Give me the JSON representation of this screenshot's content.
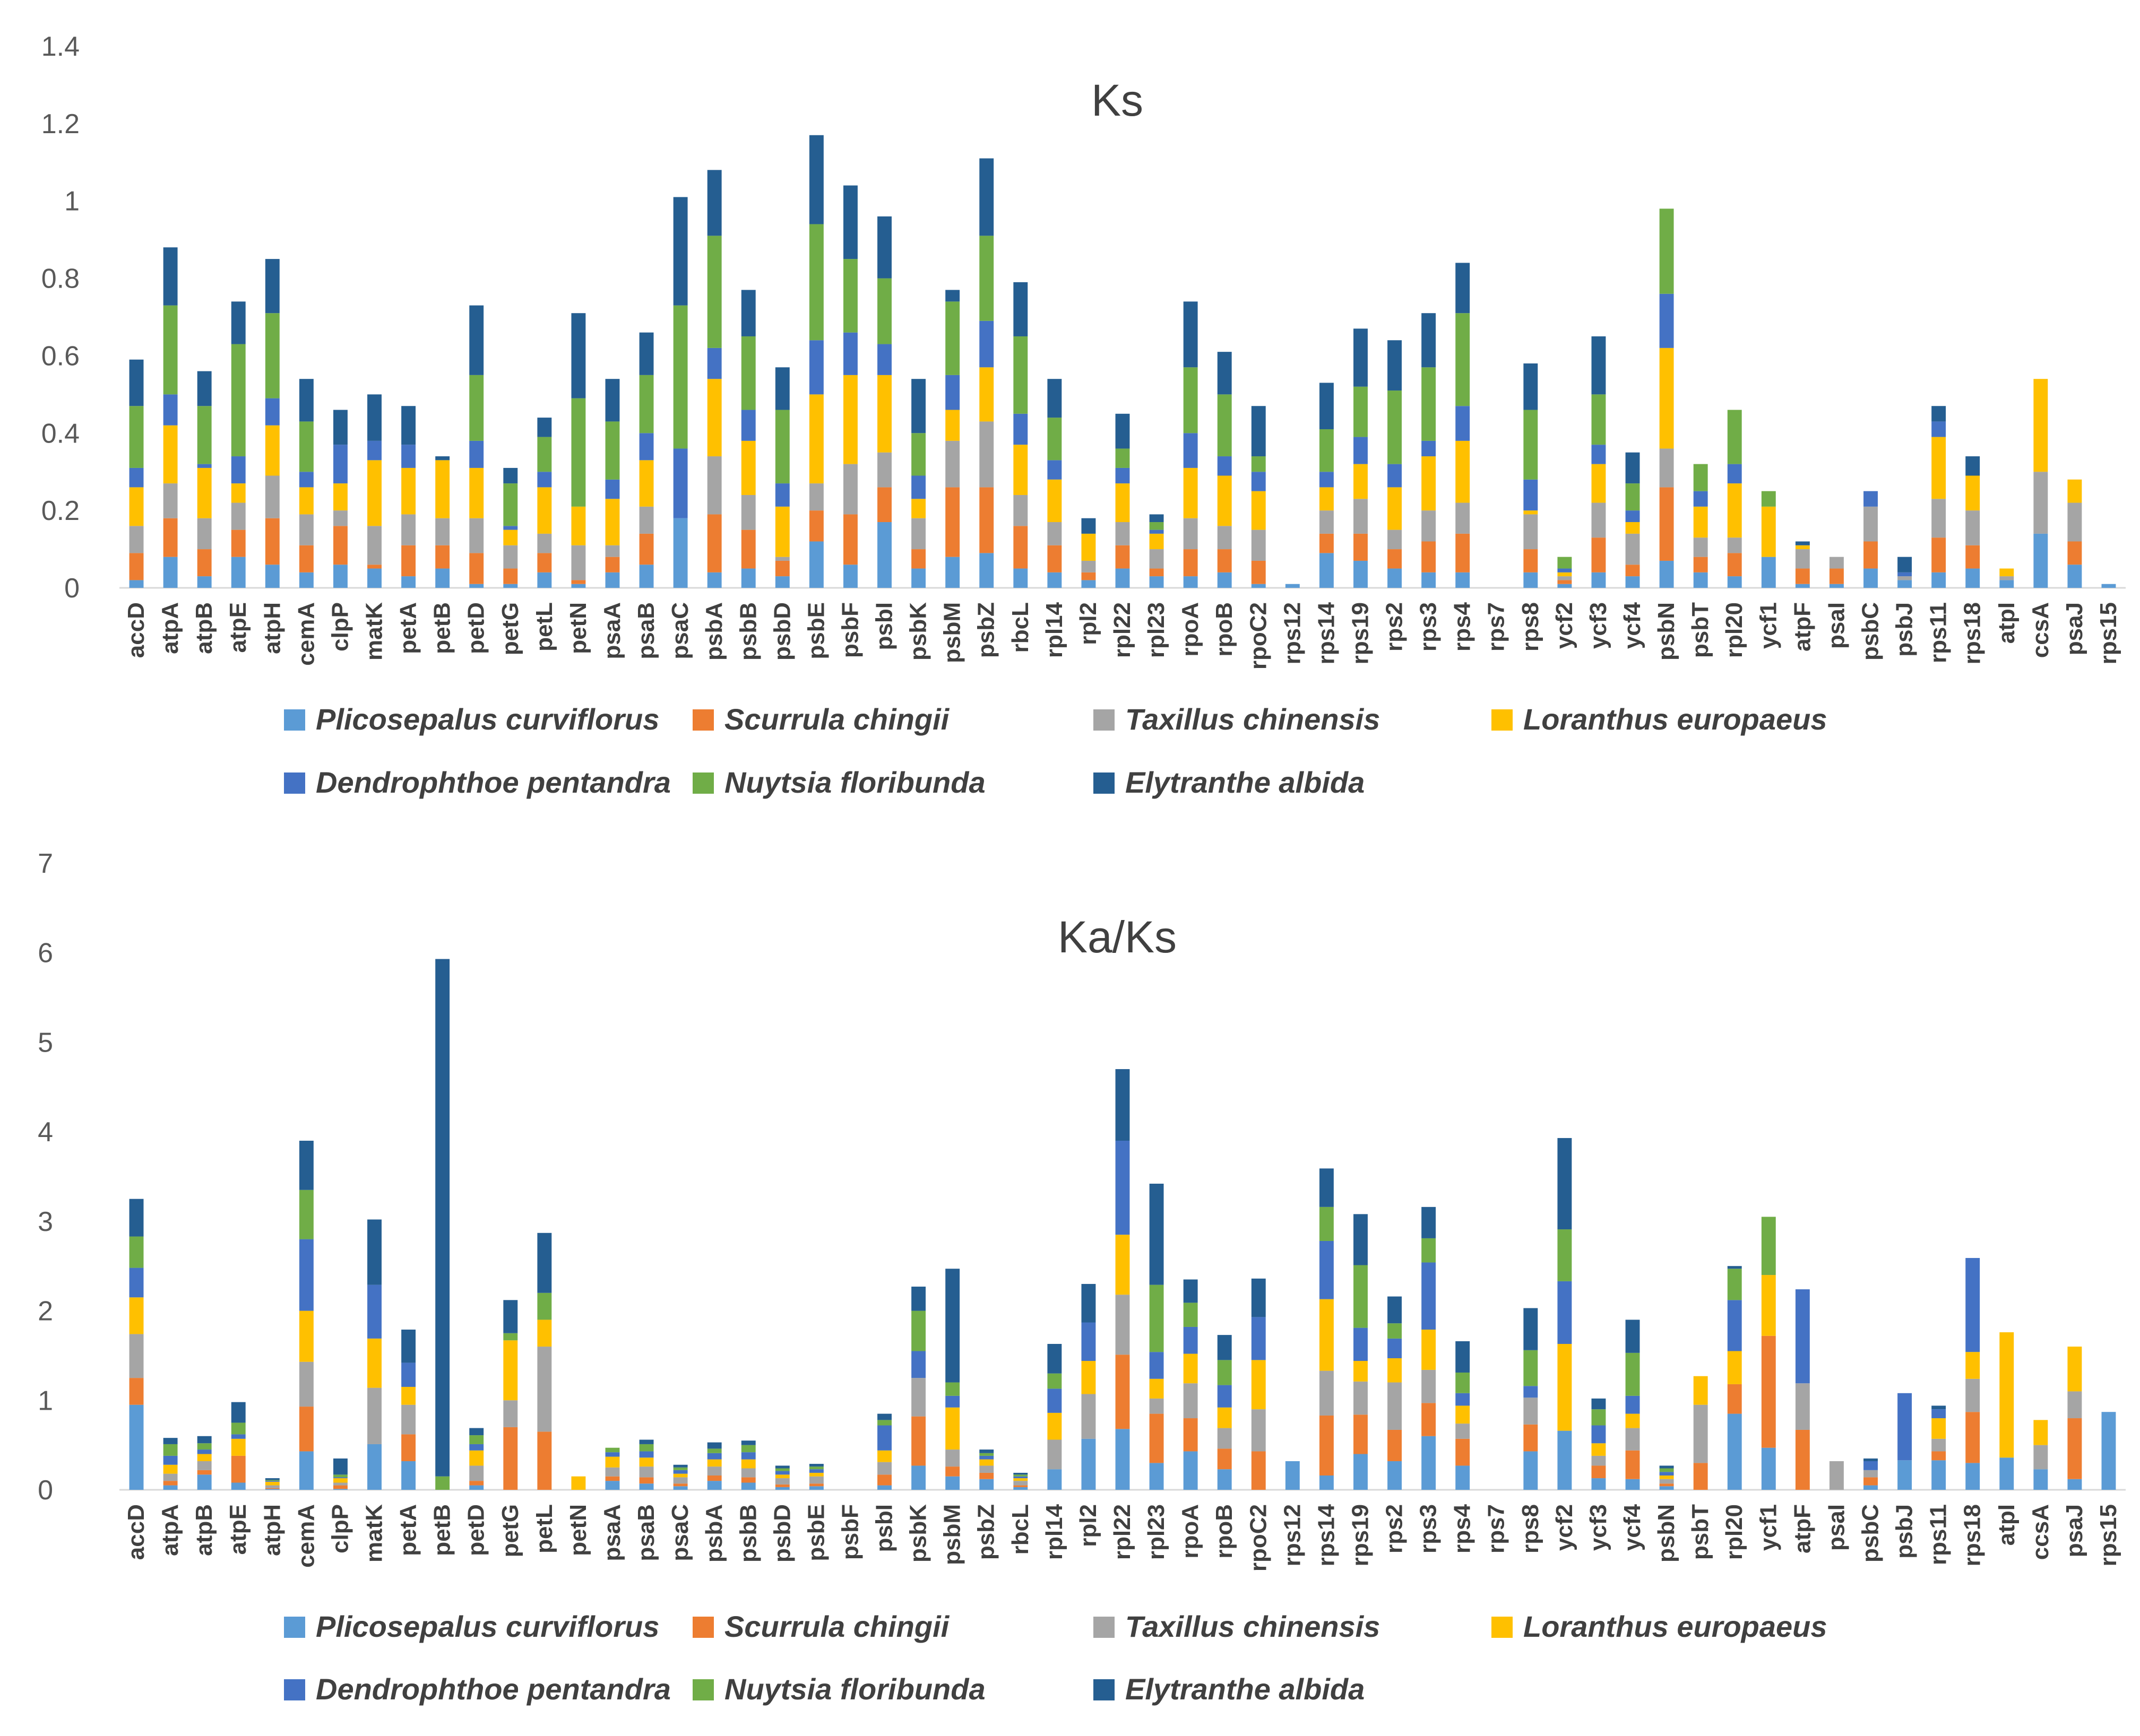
{
  "chart_data": [
    {
      "type": "bar",
      "stacked": true,
      "title": "Ks",
      "xlabel": "",
      "ylabel": "",
      "ylim": [
        0,
        1.4
      ],
      "yticks": [
        "0",
        "0.2",
        "0.4",
        "0.6",
        "0.8",
        "1",
        "1.2",
        "1.4"
      ],
      "grid": false,
      "legend": "bottom",
      "categories": [
        "accD",
        "atpA",
        "atpB",
        "atpE",
        "atpH",
        "cemA",
        "clpP",
        "matK",
        "petA",
        "petB",
        "petD",
        "petG",
        "petL",
        "petN",
        "psaA",
        "psaB",
        "psaC",
        "psbA",
        "psbB",
        "psbD",
        "psbE",
        "psbF",
        "psbI",
        "psbK",
        "psbM",
        "psbZ",
        "rbcL",
        "rpl14",
        "rpl2",
        "rpl22",
        "rpl23",
        "rpoA",
        "rpoB",
        "rpoC2",
        "rps12",
        "rps14",
        "rps19",
        "rps2",
        "rps3",
        "rps4",
        "rps7",
        "rps8",
        "ycf2",
        "ycf3",
        "ycf4",
        "psbN",
        "psbT",
        "rpl20",
        "ycf1",
        "atpF",
        "psaI",
        "psbC",
        "psbJ",
        "rps11",
        "rps18",
        "atpI",
        "ccsA",
        "psaJ",
        "rps15"
      ],
      "series": [
        {
          "name": "Plicosepalus curviflorus",
          "color": "#5B9BD5",
          "values": [
            0.02,
            0.08,
            0.03,
            0.08,
            0.06,
            0.04,
            0.06,
            0.05,
            0.03,
            0.05,
            0.01,
            0.01,
            0.04,
            0.01,
            0.04,
            0.06,
            0.18,
            0.04,
            0.05,
            0.03,
            0.12,
            0.06,
            0.17,
            0.05,
            0.08,
            0.09,
            0.05,
            0.04,
            0.02,
            0.05,
            0.03,
            0.03,
            0.04,
            0.01,
            0.01,
            0.09,
            0.07,
            0.05,
            0.04,
            0.04,
            0,
            0.04,
            0.01,
            0.04,
            0.03,
            0.07,
            0.04,
            0.03,
            0.08,
            0.01,
            0.01,
            0.05,
            0.02,
            0.04,
            0.05,
            0.02,
            0.14,
            0.06,
            0.01
          ]
        },
        {
          "name": "Scurrula chingii",
          "color": "#ED7D31",
          "values": [
            0.07,
            0.1,
            0.07,
            0.07,
            0.12,
            0.07,
            0.1,
            0.01,
            0.08,
            0.06,
            0.08,
            0.04,
            0.05,
            0.01,
            0.04,
            0.08,
            0,
            0.15,
            0.1,
            0.04,
            0.08,
            0.13,
            0.09,
            0.05,
            0.18,
            0.17,
            0.11,
            0.07,
            0.02,
            0.06,
            0.02,
            0.07,
            0.06,
            0.06,
            0,
            0.05,
            0.07,
            0.05,
            0.08,
            0.1,
            0,
            0.06,
            0.01,
            0.09,
            0.03,
            0.19,
            0.04,
            0.06,
            0,
            0.04,
            0.04,
            0.07,
            0,
            0.09,
            0.06,
            0,
            0,
            0.06,
            0
          ]
        },
        {
          "name": "Taxillus chinensis",
          "color": "#A5A5A5",
          "values": [
            0.07,
            0.09,
            0.08,
            0.07,
            0.11,
            0.08,
            0.04,
            0.1,
            0.08,
            0.07,
            0.09,
            0.06,
            0.05,
            0.09,
            0.03,
            0.07,
            0,
            0.15,
            0.09,
            0.01,
            0.07,
            0.13,
            0.09,
            0.08,
            0.12,
            0.17,
            0.08,
            0.06,
            0.03,
            0.06,
            0.05,
            0.08,
            0.06,
            0.08,
            0,
            0.06,
            0.09,
            0.05,
            0.08,
            0.08,
            0,
            0.09,
            0.01,
            0.09,
            0.08,
            0.1,
            0.05,
            0.04,
            0,
            0.05,
            0.03,
            0.09,
            0.01,
            0.1,
            0.09,
            0.01,
            0.16,
            0.1,
            0
          ]
        },
        {
          "name": "Loranthus europaeus",
          "color": "#FFC000",
          "values": [
            0.1,
            0.15,
            0.13,
            0.05,
            0.13,
            0.07,
            0.07,
            0.17,
            0.12,
            0.15,
            0.13,
            0.04,
            0.12,
            0.1,
            0.12,
            0.12,
            0,
            0.2,
            0.14,
            0.13,
            0.23,
            0.23,
            0.2,
            0.05,
            0.08,
            0.14,
            0.13,
            0.11,
            0.07,
            0.1,
            0.04,
            0.13,
            0.13,
            0.1,
            0,
            0.06,
            0.09,
            0.11,
            0.14,
            0.16,
            0,
            0.01,
            0.01,
            0.1,
            0.03,
            0.26,
            0.08,
            0.14,
            0.13,
            0.01,
            0,
            0,
            0,
            0.16,
            0.09,
            0.02,
            0.24,
            0.06,
            0
          ]
        },
        {
          "name": "Dendrophthoe pentandra",
          "color": "#4472C4",
          "values": [
            0.05,
            0.08,
            0.01,
            0.07,
            0.07,
            0.04,
            0.1,
            0.05,
            0.06,
            0,
            0.07,
            0.01,
            0.04,
            0,
            0.05,
            0.07,
            0.18,
            0.08,
            0.08,
            0.06,
            0.14,
            0.11,
            0.08,
            0.06,
            0.09,
            0.12,
            0.08,
            0.05,
            0,
            0.04,
            0.01,
            0.09,
            0.05,
            0.05,
            0,
            0.04,
            0.07,
            0.06,
            0.04,
            0.09,
            0,
            0.08,
            0.01,
            0.05,
            0.03,
            0.14,
            0.04,
            0.05,
            0,
            0,
            0,
            0.04,
            0.01,
            0.04,
            0,
            0,
            0,
            0,
            0
          ]
        },
        {
          "name": "Nuytsia floribunda",
          "color": "#70AD47",
          "values": [
            0.16,
            0.23,
            0.15,
            0.29,
            0.22,
            0.13,
            0,
            0,
            0,
            0,
            0.17,
            0.11,
            0.09,
            0.28,
            0.15,
            0.15,
            0.37,
            0.29,
            0.19,
            0.19,
            0.3,
            0.19,
            0.17,
            0.11,
            0.19,
            0.22,
            0.2,
            0.11,
            0,
            0.05,
            0.02,
            0.17,
            0.16,
            0.04,
            0,
            0.11,
            0.13,
            0.19,
            0.19,
            0.24,
            0,
            0.18,
            0.03,
            0.13,
            0.07,
            0.22,
            0.07,
            0.14,
            0.04,
            0,
            0,
            0,
            0,
            0,
            0,
            0,
            0,
            0,
            0
          ]
        },
        {
          "name": "Elytranthe albida",
          "color": "#255E91",
          "values": [
            0.12,
            0.15,
            0.09,
            0.11,
            0.14,
            0.11,
            0.09,
            0.12,
            0.1,
            0.01,
            0.18,
            0.04,
            0.05,
            0.22,
            0.11,
            0.11,
            0.28,
            0.17,
            0.12,
            0.11,
            0.23,
            0.19,
            0.16,
            0.14,
            0.03,
            0.2,
            0.14,
            0.1,
            0.04,
            0.09,
            0.02,
            0.17,
            0.11,
            0.13,
            0,
            0.12,
            0.15,
            0.13,
            0.14,
            0.13,
            0,
            0.12,
            0,
            0.15,
            0.08,
            0,
            0,
            0,
            0,
            0.01,
            0,
            0,
            0.04,
            0.04,
            0.05,
            0,
            0,
            0,
            0
          ]
        }
      ]
    },
    {
      "type": "bar",
      "stacked": true,
      "title": "Ka/Ks",
      "xlabel": "",
      "ylabel": "",
      "ylim": [
        0,
        7
      ],
      "yticks": [
        "0",
        "1",
        "2",
        "3",
        "4",
        "5",
        "6",
        "7"
      ],
      "grid": false,
      "legend": "bottom",
      "categories": [
        "accD",
        "atpA",
        "atpB",
        "atpE",
        "atpH",
        "cemA",
        "clpP",
        "matK",
        "petA",
        "petB",
        "petD",
        "petG",
        "petL",
        "petN",
        "psaA",
        "psaB",
        "psaC",
        "psbA",
        "psbB",
        "psbD",
        "psbE",
        "psbF",
        "psbI",
        "psbK",
        "psbM",
        "psbZ",
        "rbcL",
        "rpl14",
        "rpl2",
        "rpl22",
        "rpl23",
        "rpoA",
        "rpoB",
        "rpoC2",
        "rps12",
        "rps14",
        "rps19",
        "rps2",
        "rps3",
        "rps4",
        "rps7",
        "rps8",
        "ycf2",
        "ycf3",
        "ycf4",
        "psbN",
        "psbT",
        "rpl20",
        "ycf1",
        "atpF",
        "psaI",
        "psbC",
        "psbJ",
        "rps11",
        "rps18",
        "atpI",
        "ccsA",
        "psaJ",
        "rps15"
      ],
      "series": [
        {
          "name": "Plicosepalus curviflorus",
          "color": "#5B9BD5",
          "values": [
            0.95,
            0.05,
            0.17,
            0.08,
            0.01,
            0.43,
            0.01,
            0.51,
            0.32,
            0,
            0.05,
            0,
            0,
            0,
            0.1,
            0.07,
            0.04,
            0.1,
            0.08,
            0.03,
            0.04,
            0,
            0.05,
            0.27,
            0.15,
            0.12,
            0.03,
            0.23,
            0.57,
            0.68,
            0.3,
            0.43,
            0.23,
            0,
            0.32,
            0.16,
            0.4,
            0.32,
            0.6,
            0.27,
            0,
            0.43,
            0.66,
            0.13,
            0.12,
            0.04,
            0,
            0.85,
            0.47,
            0,
            0,
            0.05,
            0.33,
            0.33,
            0.3,
            0.36,
            0.23,
            0.12,
            0.87
          ]
        },
        {
          "name": "Scurrula chingii",
          "color": "#ED7D31",
          "values": [
            0.3,
            0.05,
            0.05,
            0.3,
            0.01,
            0.5,
            0.04,
            0,
            0.3,
            0,
            0.05,
            0.7,
            0.65,
            0,
            0.05,
            0.07,
            0.03,
            0.06,
            0.06,
            0.03,
            0.03,
            0,
            0.12,
            0.55,
            0.11,
            0.07,
            0.02,
            0,
            0,
            0.83,
            0.55,
            0.37,
            0.23,
            0.43,
            0,
            0.67,
            0.44,
            0.35,
            0.37,
            0.3,
            0,
            0.3,
            0,
            0.14,
            0.32,
            0.03,
            0.3,
            0.33,
            1.25,
            0.67,
            0,
            0.09,
            0,
            0.1,
            0.57,
            0,
            0,
            0.68,
            0
          ]
        },
        {
          "name": "Taxillus chinensis",
          "color": "#A5A5A5",
          "values": [
            0.49,
            0.08,
            0.1,
            0,
            0.03,
            0.5,
            0.03,
            0.63,
            0.33,
            0,
            0.17,
            0.3,
            0.95,
            0,
            0.1,
            0.12,
            0.07,
            0.1,
            0.1,
            0.07,
            0.08,
            0,
            0.14,
            0.43,
            0.19,
            0.08,
            0.05,
            0.33,
            0.5,
            0.67,
            0.17,
            0.39,
            0.23,
            0.47,
            0,
            0.5,
            0.37,
            0.53,
            0.37,
            0.17,
            0,
            0.3,
            0,
            0.11,
            0.25,
            0.05,
            0.65,
            0,
            0,
            0.52,
            0.32,
            0.08,
            0,
            0.14,
            0.37,
            0,
            0.27,
            0.3,
            0
          ]
        },
        {
          "name": "Loranthus europaeus",
          "color": "#FFC000",
          "values": [
            0.41,
            0.1,
            0.08,
            0.19,
            0.04,
            0.57,
            0.05,
            0.55,
            0.2,
            0,
            0.17,
            0.67,
            0.3,
            0.15,
            0.12,
            0.1,
            0.04,
            0.08,
            0.1,
            0.04,
            0.04,
            0,
            0.13,
            0,
            0.47,
            0.07,
            0.03,
            0.3,
            0.37,
            0.67,
            0.22,
            0.33,
            0.23,
            0.55,
            0,
            0.8,
            0.23,
            0.27,
            0.45,
            0.2,
            0,
            0,
            0.97,
            0.14,
            0.16,
            0.04,
            0.32,
            0.37,
            0.68,
            0,
            0,
            0,
            0,
            0.23,
            0.3,
            1.4,
            0.28,
            0.5,
            0
          ]
        },
        {
          "name": "Dendrophthoe pentandra",
          "color": "#4472C4",
          "values": [
            0.33,
            0.1,
            0.05,
            0.05,
            0.01,
            0.8,
            0.01,
            0.6,
            0.27,
            0,
            0.07,
            0,
            0,
            0,
            0.05,
            0.07,
            0.04,
            0.07,
            0.08,
            0.04,
            0.04,
            0,
            0.28,
            0.3,
            0.13,
            0.04,
            0.02,
            0.27,
            0.43,
            1.05,
            0.3,
            0.3,
            0.25,
            0.48,
            0,
            0.65,
            0.37,
            0.22,
            0.75,
            0.14,
            0,
            0.13,
            0.7,
            0.2,
            0.2,
            0.04,
            0,
            0.57,
            0,
            1.05,
            0,
            0.1,
            0.75,
            0.1,
            1.05,
            0,
            0,
            0,
            0
          ]
        },
        {
          "name": "Nuytsia floribunda",
          "color": "#70AD47",
          "values": [
            0.35,
            0.13,
            0.07,
            0.13,
            0.01,
            0.55,
            0.03,
            0,
            0,
            0.15,
            0.1,
            0.08,
            0.3,
            0,
            0.05,
            0.08,
            0.03,
            0.05,
            0.08,
            0.03,
            0.03,
            0,
            0.06,
            0.45,
            0.15,
            0.03,
            0.02,
            0.17,
            0,
            0,
            0.75,
            0.27,
            0.28,
            0,
            0,
            0.38,
            0.7,
            0.17,
            0.27,
            0.23,
            0,
            0.4,
            0.58,
            0.18,
            0.48,
            0.04,
            0,
            0.35,
            0.65,
            0,
            0,
            0,
            0,
            0,
            0,
            0,
            0,
            0,
            0
          ]
        },
        {
          "name": "Elytranthe albida",
          "color": "#255E91",
          "values": [
            0.42,
            0.07,
            0.08,
            0.23,
            0.02,
            0.55,
            0.18,
            0.73,
            0.37,
            5.78,
            0.08,
            0.37,
            0.67,
            0,
            0,
            0.05,
            0.03,
            0.07,
            0.05,
            0.03,
            0.03,
            0,
            0.07,
            0.27,
            1.27,
            0.04,
            0.02,
            0.33,
            0.43,
            0.8,
            1.13,
            0.26,
            0.28,
            0.43,
            0,
            0.43,
            0.57,
            0.3,
            0.35,
            0.35,
            0,
            0.47,
            1.02,
            0.12,
            0.37,
            0.03,
            0,
            0.03,
            0,
            0,
            0,
            0.03,
            0,
            0.04,
            0,
            0,
            0,
            0,
            0
          ]
        }
      ]
    }
  ]
}
